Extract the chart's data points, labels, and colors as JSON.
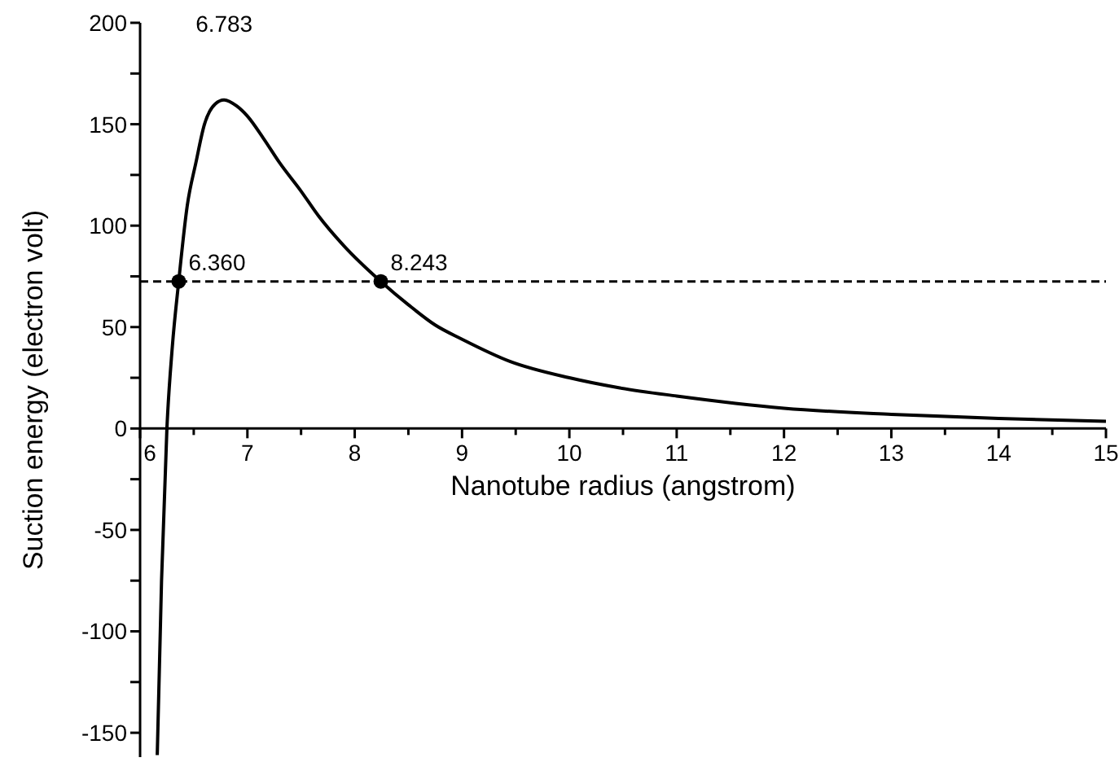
{
  "chart_data": {
    "type": "line",
    "xlabel": "Nanotube radius (angstrom)",
    "ylabel": "Suction energy (electron volt)",
    "xlim": [
      6,
      15
    ],
    "xticks": [
      6,
      {
        "value": 6.5,
        "label": null
      },
      7,
      {
        "value": 7.5,
        "label": null
      },
      8,
      {
        "value": 8.5,
        "label": null
      },
      9,
      {
        "value": 9.5,
        "label": null
      },
      10,
      {
        "value": 10.5,
        "label": null
      },
      11,
      {
        "value": 11.5,
        "label": null
      },
      12,
      {
        "value": 12.5,
        "label": null
      },
      13,
      {
        "value": 13.5,
        "label": null
      },
      14,
      {
        "value": 14.5,
        "label": null
      },
      15
    ],
    "ylim": [
      -162,
      200
    ],
    "yticks": [
      -150,
      {
        "value": -125,
        "label": null
      },
      -100,
      {
        "value": -75,
        "label": null
      },
      -50,
      {
        "value": -25,
        "label": null
      },
      0,
      {
        "value": 25,
        "label": null
      },
      50,
      {
        "value": 75,
        "label": null
      },
      100,
      {
        "value": 125,
        "label": null
      },
      150,
      {
        "value": 175,
        "label": null
      },
      200
    ],
    "grid": false,
    "legend": false,
    "series": [
      {
        "color": "#000000",
        "marker": "none",
        "line_style": "solid",
        "x": [
          6.16,
          6.2,
          6.25,
          6.3,
          6.36,
          6.44,
          6.52,
          6.6,
          6.7,
          6.783,
          6.9,
          7.0,
          7.15,
          7.3,
          7.5,
          7.66,
          7.9,
          8.243,
          8.5,
          8.75,
          9.0,
          9.45,
          10.0,
          10.47,
          11,
          12,
          13,
          14,
          15
        ],
        "values": [
          -161,
          -75,
          0,
          40,
          72.5,
          110,
          131,
          150,
          160,
          162,
          159,
          154,
          143,
          131,
          117,
          105,
          90,
          72.5,
          61,
          51,
          44,
          33,
          25,
          20,
          16,
          10,
          7,
          5,
          3.5
        ]
      },
      {
        "type": "scatter",
        "color": "#000000",
        "marker": "circle",
        "x": [
          6.36,
          8.243
        ],
        "values": [
          72.5,
          72.5
        ]
      }
    ],
    "ref_lines": [
      {
        "axis": "y",
        "value": 72.5,
        "color": "#000000",
        "line_style": "dashed"
      }
    ],
    "annotations": [
      {
        "text": "6.783",
        "x": 6.783,
        "y": 162
      },
      {
        "text": "6.360",
        "x": 6.36,
        "y": 72.5
      },
      {
        "text": "8.243",
        "x": 8.243,
        "y": 72.5
      }
    ]
  }
}
